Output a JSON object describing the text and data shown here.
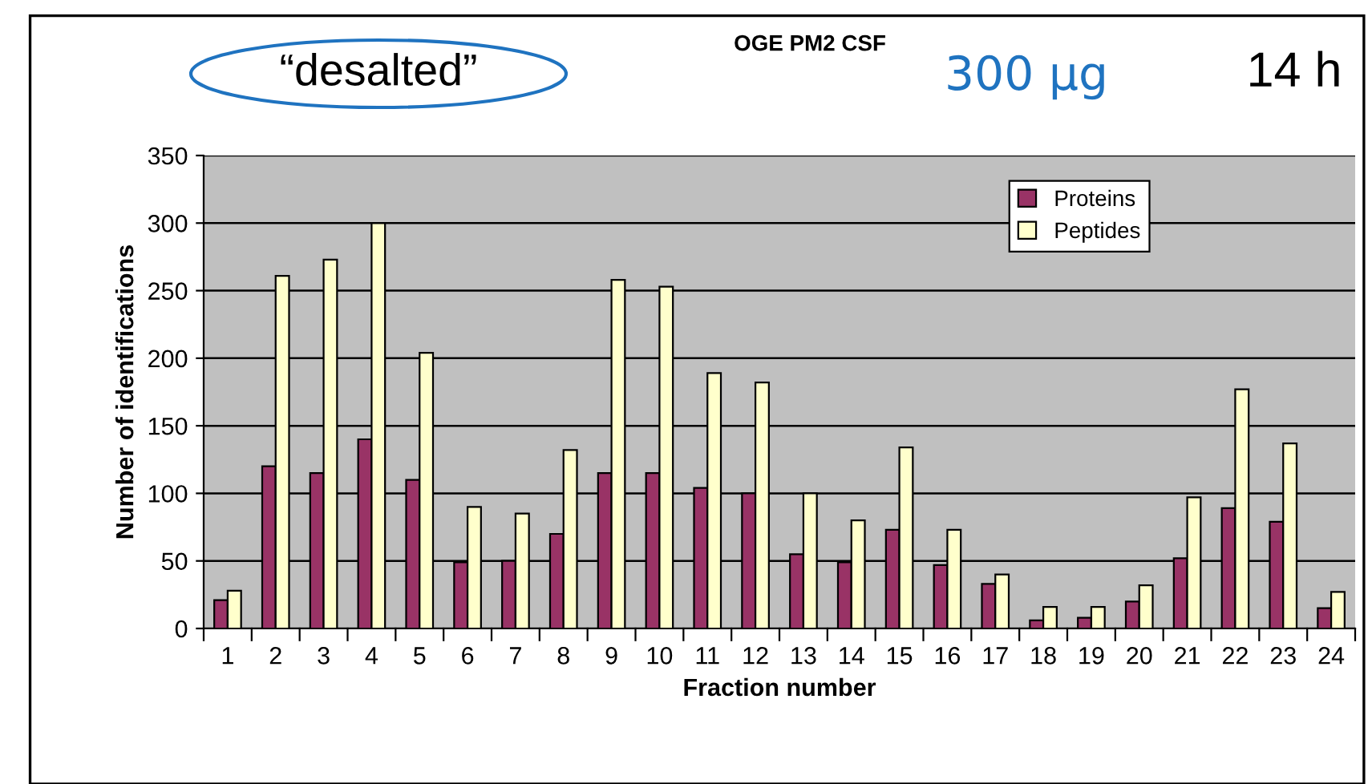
{
  "chart_data": {
    "type": "bar",
    "title": "OGE PM2 CSF",
    "annotations": [
      "“desalted”",
      "300 µg",
      "14 h"
    ],
    "xlabel": "Fraction number",
    "ylabel": "Number of identifications",
    "categories": [
      "1",
      "2",
      "3",
      "4",
      "5",
      "6",
      "7",
      "8",
      "9",
      "10",
      "11",
      "12",
      "13",
      "14",
      "15",
      "16",
      "17",
      "18",
      "19",
      "20",
      "21",
      "22",
      "23",
      "24"
    ],
    "series": [
      {
        "name": "Proteins",
        "color": "#993366",
        "values": [
          21,
          120,
          115,
          140,
          110,
          49,
          50,
          70,
          115,
          115,
          104,
          100,
          55,
          49,
          73,
          47,
          33,
          6,
          8,
          20,
          52,
          89,
          79,
          15
        ]
      },
      {
        "name": "Peptides",
        "color": "#ffffcc",
        "values": [
          28,
          261,
          273,
          300,
          204,
          90,
          85,
          132,
          258,
          253,
          189,
          182,
          100,
          80,
          134,
          73,
          40,
          16,
          16,
          32,
          97,
          177,
          137,
          27
        ]
      }
    ],
    "ylim": [
      0,
      350
    ],
    "yticks": [
      0,
      50,
      100,
      150,
      200,
      250,
      300,
      350
    ],
    "grid": "y",
    "legend": "top right"
  }
}
